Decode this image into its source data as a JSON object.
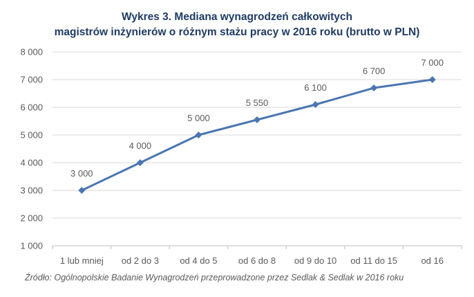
{
  "chart_data": {
    "type": "line",
    "title_line1": "Wykres 3. Mediana wynagrodzeń całkowitych",
    "title_line2": "magistrów inżynierów o różnym stażu pracy w 2016 roku (brutto w PLN)",
    "categories": [
      "1 lub mniej",
      "od 2 do 3",
      "od 4 do 5",
      "od 6 do 8",
      "od 9 do 10",
      "od 11 do 15",
      "od 16"
    ],
    "values": [
      3000,
      4000,
      5000,
      5550,
      6100,
      6700,
      7000
    ],
    "data_labels": [
      "3 000",
      "4 000",
      "5 000",
      "5 550",
      "6 100",
      "6 700",
      "7 000"
    ],
    "ylim": [
      1000,
      8000
    ],
    "y_ticks": [
      1000,
      2000,
      3000,
      4000,
      5000,
      6000,
      7000,
      8000
    ],
    "y_tick_labels": [
      "1 000",
      "2 000",
      "3 000",
      "4 000",
      "5 000",
      "6 000",
      "7 000",
      "8 000"
    ],
    "grid": true,
    "line_color": "#4a76b0",
    "marker": "diamond",
    "source": "Źródło: Ogólnopolskie Badanie Wynagrodzeń przeprowadzone przez Sedlak & Sedlak w 2016 roku"
  }
}
